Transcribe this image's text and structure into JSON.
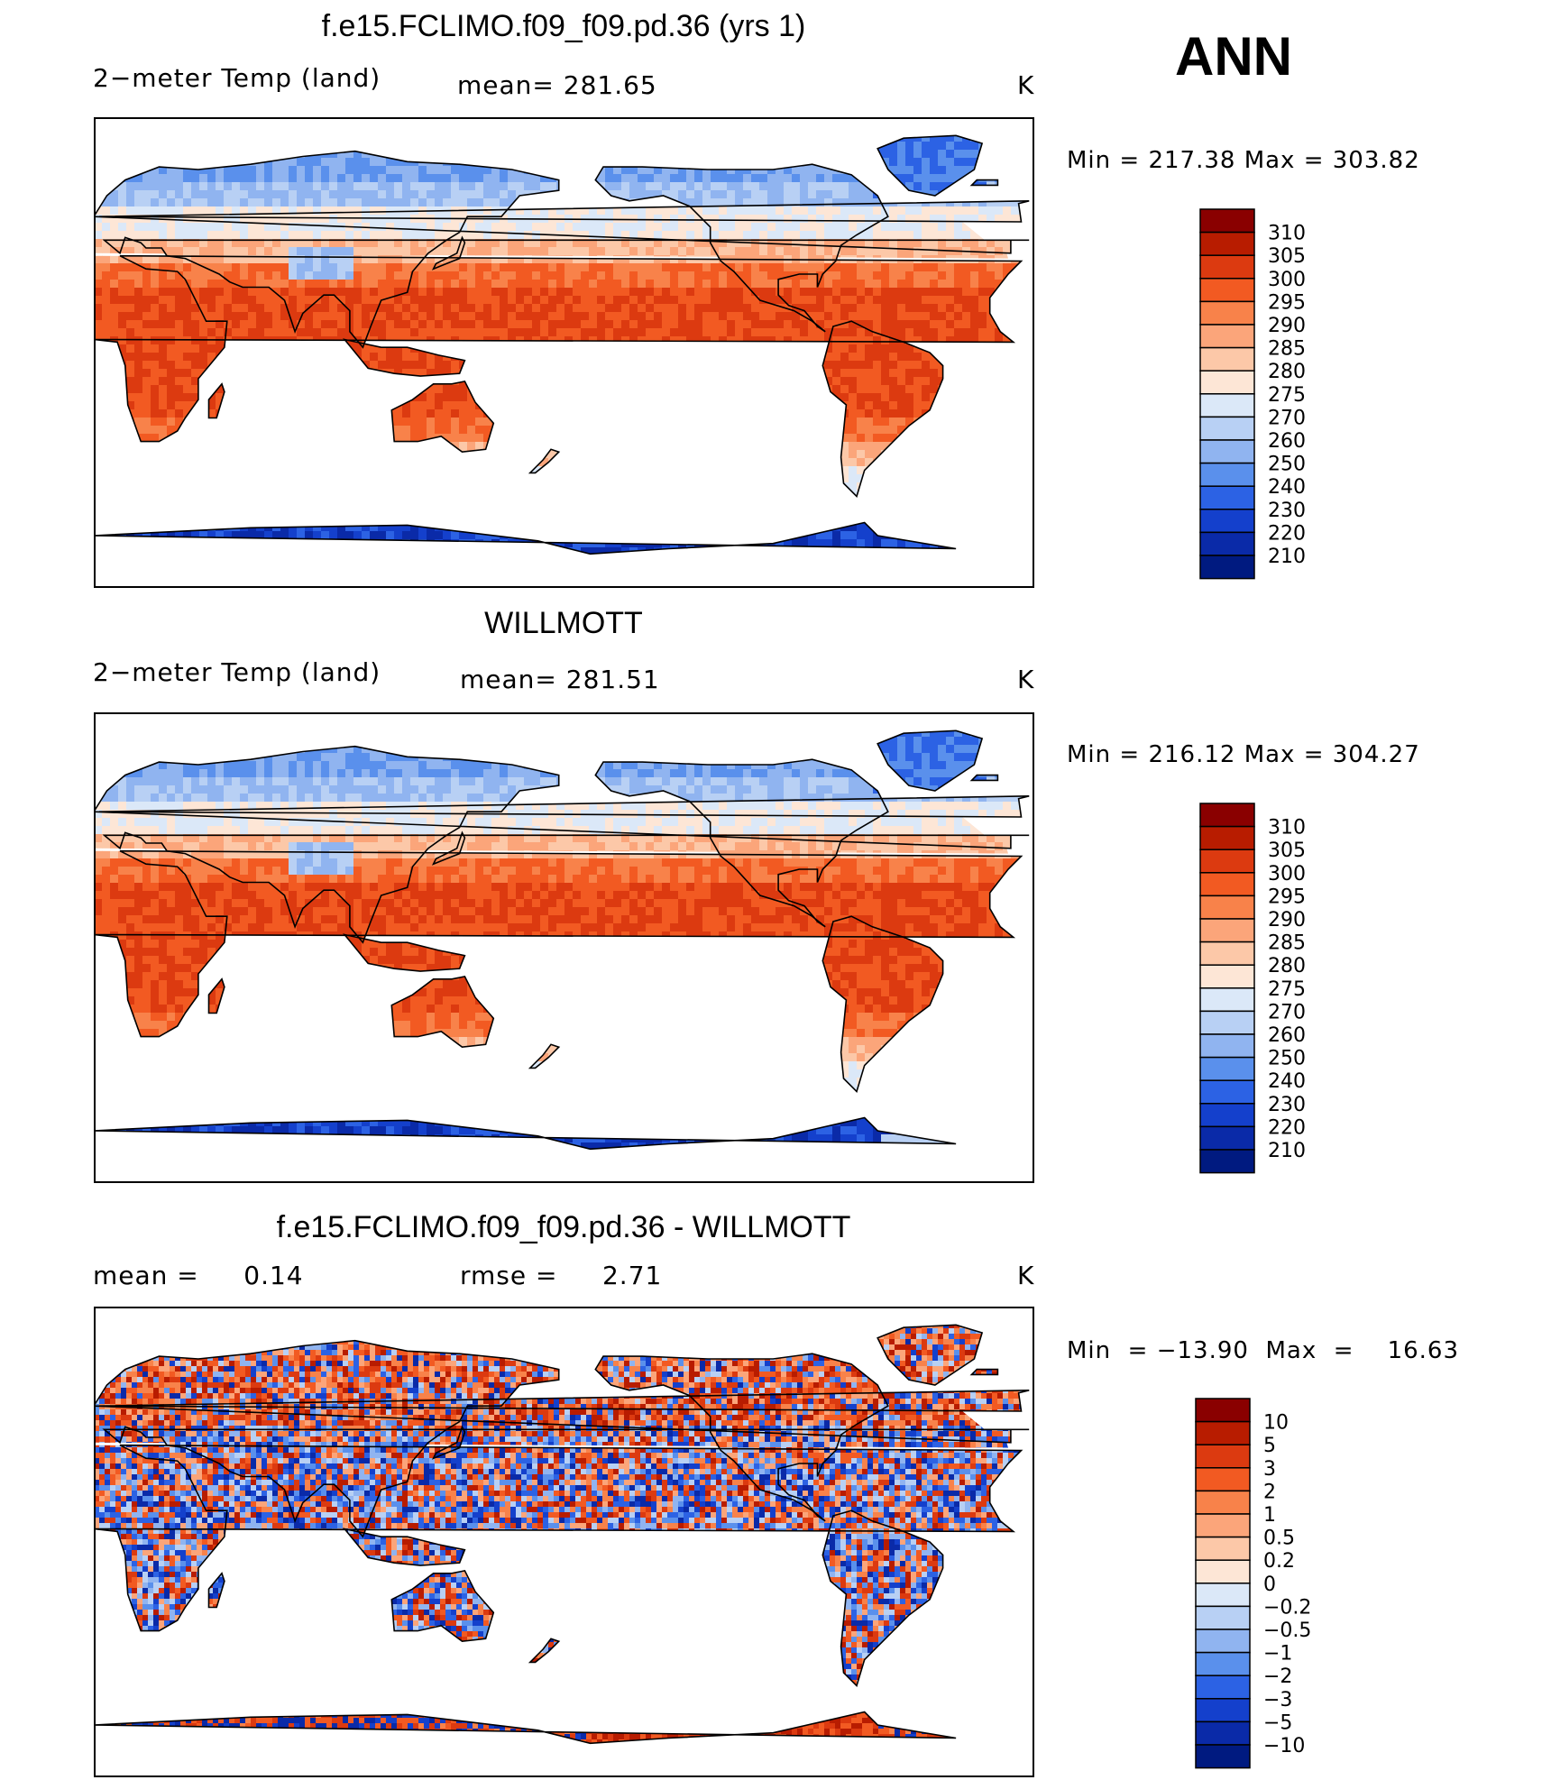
{
  "season": "ANN",
  "panels": [
    {
      "title": "f.e15.FCLIMO.f09_f09.pd.36 (yrs 1)",
      "left_label": "2−meter Temp (land)",
      "mid_label": "mean=  281.65",
      "unit": "K",
      "minmax": "Min  =  217.38  Max  =  303.82",
      "colorbar_labels": [
        "310",
        "305",
        "300",
        "295",
        "290",
        "285",
        "280",
        "275",
        "270",
        "260",
        "250",
        "240",
        "230",
        "220",
        "210"
      ],
      "colors": [
        "#8a0000",
        "#b81c00",
        "#dc3a10",
        "#f25a22",
        "#f8824a",
        "#fba57a",
        "#fcc8a8",
        "#fde6d6",
        "#dbe8f8",
        "#b8d0f4",
        "#90b4f0",
        "#5a90ec",
        "#2c62e4",
        "#1440cc",
        "#0a2aa8",
        "#001a80"
      ]
    },
    {
      "title": "WILLMOTT",
      "left_label": "2−meter Temp (land)",
      "mid_label": "mean=  281.51",
      "unit": "K",
      "minmax": "Min  =  216.12  Max  =  304.27",
      "colorbar_labels": [
        "310",
        "305",
        "300",
        "295",
        "290",
        "285",
        "280",
        "275",
        "270",
        "260",
        "250",
        "240",
        "230",
        "220",
        "210"
      ],
      "colors": [
        "#8a0000",
        "#b81c00",
        "#dc3a10",
        "#f25a22",
        "#f8824a",
        "#fba57a",
        "#fcc8a8",
        "#fde6d6",
        "#dbe8f8",
        "#b8d0f4",
        "#90b4f0",
        "#5a90ec",
        "#2c62e4",
        "#1440cc",
        "#0a2aa8",
        "#001a80"
      ]
    },
    {
      "title": "f.e15.FCLIMO.f09_f09.pd.36 - WILLMOTT",
      "left_label": "mean =     0.14",
      "mid_label": "rmse =     2.71",
      "unit": "K",
      "minmax": "Min  = −13.90  Max  =    16.63",
      "colorbar_labels": [
        "10",
        "5",
        "3",
        "2",
        "1",
        "0.5",
        "0.2",
        "0",
        "−0.2",
        "−0.5",
        "−1",
        "−2",
        "−3",
        "−5",
        "−10"
      ],
      "colors": [
        "#8a0000",
        "#b81c00",
        "#dc3a10",
        "#f25a22",
        "#f8824a",
        "#fba57a",
        "#fcc8a8",
        "#fde6d6",
        "#dbe8f8",
        "#b8d0f4",
        "#90b4f0",
        "#5a90ec",
        "#2c62e4",
        "#1440cc",
        "#0a2aa8",
        "#001a80"
      ]
    }
  ]
}
